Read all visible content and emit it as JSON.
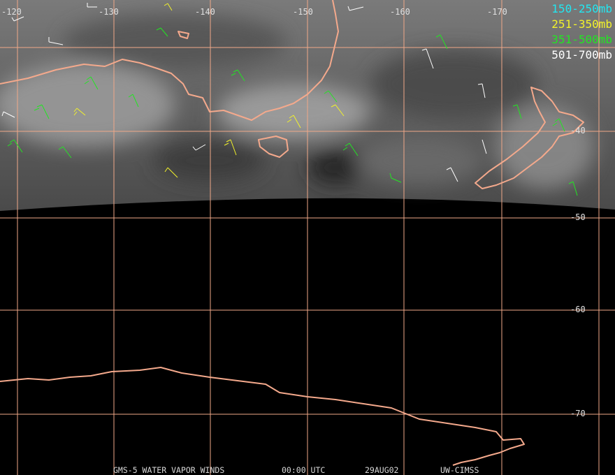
{
  "map": {
    "longitude_labels": [
      "-120",
      "-130",
      "-140",
      "-150",
      "-160",
      "-170"
    ],
    "latitude_labels": [
      "-40",
      "-50",
      "-60",
      "-70"
    ]
  },
  "legend": [
    {
      "label": "150-250mb",
      "color": "#22e6f0"
    },
    {
      "label": "251-350mb",
      "color": "#f2f22a"
    },
    {
      "label": "351-500mb",
      "color": "#22e622"
    },
    {
      "label": "501-700mb",
      "color": "#ffffff"
    }
  ],
  "footer": [
    "GMS-5 WATER VAPOR WINDS",
    "00:00 UTC",
    "29AUG02",
    "UW-CIMSS"
  ]
}
